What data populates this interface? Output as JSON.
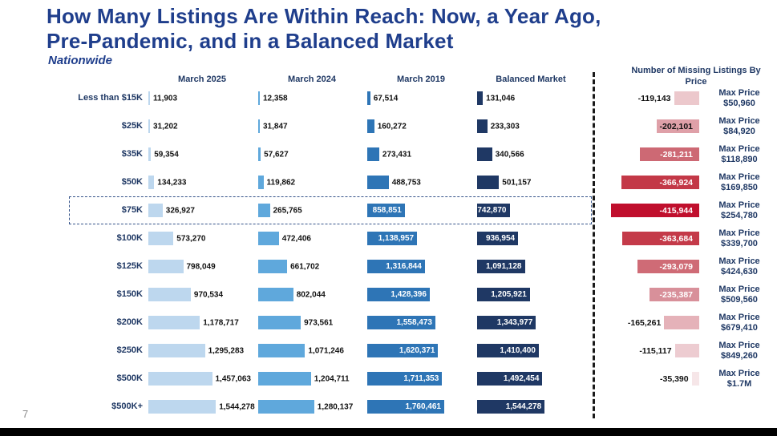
{
  "slide": {
    "title": "How Many Listings Are Within Reach: Now, a Year Ago,\nPre-Pandemic, and in a Balanced Market",
    "subtitle": "Nationwide",
    "page_number": "7"
  },
  "chart_data": {
    "type": "bar",
    "orientation": "horizontal",
    "title": "How Many Listings Are Within Reach: Now, a Year Ago, Pre-Pandemic, and in a Balanced Market",
    "subtitle": "Nationwide",
    "columns": [
      "March 2025",
      "March 2024",
      "March 2019",
      "Balanced Market"
    ],
    "series_colors": [
      "#bdd7ee",
      "#5fa8dc",
      "#2e75b6",
      "#1f3864"
    ],
    "missing_header": "Number of Missing Listings By Price",
    "max_price_label": "Max Price",
    "max_value": 1760461,
    "missing_max_abs": 415944,
    "rows": [
      {
        "label": "Less than $15K",
        "values": [
          11903,
          12358,
          67514,
          131046
        ],
        "value_labels": [
          "11,903",
          "12,358",
          "67,514",
          "131,046"
        ],
        "missing_value": -119143,
        "missing_label": "-119,143",
        "missing_color": "#ecc8cc",
        "missing_text_color": "#111111",
        "max_price": "$50,960",
        "highlighted": false
      },
      {
        "label": "$25K",
        "values": [
          31202,
          31847,
          160272,
          233303
        ],
        "value_labels": [
          "31,202",
          "31,847",
          "160,272",
          "233,303"
        ],
        "missing_value": -202101,
        "missing_label": "-202,101",
        "missing_color": "#dfa0a8",
        "missing_text_color": "#111111",
        "max_price": "$84,920",
        "highlighted": false
      },
      {
        "label": "$35K",
        "values": [
          59354,
          57627,
          273431,
          340566
        ],
        "value_labels": [
          "59,354",
          "57,627",
          "273,431",
          "340,566"
        ],
        "missing_value": -281211,
        "missing_label": "-281,211",
        "missing_color": "#cd6974",
        "missing_text_color": "#ffffff",
        "max_price": "$118,890",
        "highlighted": false
      },
      {
        "label": "$50K",
        "values": [
          134233,
          119862,
          488753,
          501157
        ],
        "value_labels": [
          "134,233",
          "119,862",
          "488,753",
          "501,157"
        ],
        "missing_value": -366924,
        "missing_label": "-366,924",
        "missing_color": "#c33847",
        "missing_text_color": "#ffffff",
        "max_price": "$169,850",
        "highlighted": false
      },
      {
        "label": "$75K",
        "values": [
          326927,
          265765,
          858851,
          742870
        ],
        "value_labels": [
          "326,927",
          "265,765",
          "858,851",
          "742,870"
        ],
        "missing_value": -415944,
        "missing_label": "-415,944",
        "missing_color": "#c00f2d",
        "missing_text_color": "#ffffff",
        "max_price": "$254,780",
        "highlighted": true
      },
      {
        "label": "$100K",
        "values": [
          573270,
          472406,
          1138957,
          936954
        ],
        "value_labels": [
          "573,270",
          "472,406",
          "1,138,957",
          "936,954"
        ],
        "missing_value": -363684,
        "missing_label": "-363,684",
        "missing_color": "#c43a49",
        "missing_text_color": "#ffffff",
        "max_price": "$339,700",
        "highlighted": false
      },
      {
        "label": "$125K",
        "values": [
          798049,
          661702,
          1316844,
          1091128
        ],
        "value_labels": [
          "798,049",
          "661,702",
          "1,316,844",
          "1,091,128"
        ],
        "missing_value": -293079,
        "missing_label": "-293,079",
        "missing_color": "#cf6b76",
        "missing_text_color": "#ffffff",
        "max_price": "$424,630",
        "highlighted": false
      },
      {
        "label": "$150K",
        "values": [
          970534,
          802044,
          1428396,
          1205921
        ],
        "value_labels": [
          "970,534",
          "802,044",
          "1,428,396",
          "1,205,921"
        ],
        "missing_value": -235387,
        "missing_label": "-235,387",
        "missing_color": "#d8909a",
        "missing_text_color": "#ffffff",
        "max_price": "$509,560",
        "highlighted": false
      },
      {
        "label": "$200K",
        "values": [
          1178717,
          973561,
          1558473,
          1343977
        ],
        "value_labels": [
          "1,178,717",
          "973,561",
          "1,558,473",
          "1,343,977"
        ],
        "missing_value": -165261,
        "missing_label": "-165,261",
        "missing_color": "#e5b2b9",
        "missing_text_color": "#111111",
        "max_price": "$679,410",
        "highlighted": false
      },
      {
        "label": "$250K",
        "values": [
          1295283,
          1071246,
          1620371,
          1410400
        ],
        "value_labels": [
          "1,295,283",
          "1,071,246",
          "1,620,371",
          "1,410,400"
        ],
        "missing_value": -115117,
        "missing_label": "-115,117",
        "missing_color": "#edccd1",
        "missing_text_color": "#111111",
        "max_price": "$849,260",
        "highlighted": false
      },
      {
        "label": "$500K",
        "values": [
          1457063,
          1204711,
          1711353,
          1492454
        ],
        "value_labels": [
          "1,457,063",
          "1,204,711",
          "1,711,353",
          "1,492,454"
        ],
        "missing_value": -35390,
        "missing_label": "-35,390",
        "missing_color": "#f6e6e8",
        "missing_text_color": "#111111",
        "max_price": "$1.7M",
        "highlighted": false
      },
      {
        "label": "$500K+",
        "values": [
          1544278,
          1280137,
          1760461,
          1544278
        ],
        "value_labels": [
          "1,544,278",
          "1,280,137",
          "1,760,461",
          "1,544,278"
        ],
        "missing_value": null,
        "missing_label": null,
        "missing_color": null,
        "missing_text_color": null,
        "max_price": null,
        "highlighted": false
      }
    ]
  }
}
